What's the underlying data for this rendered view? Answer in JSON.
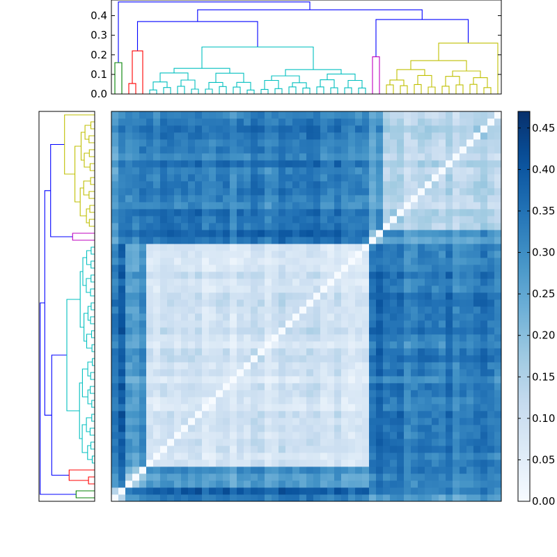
{
  "chart_data": [
    {
      "type": "dendrogram",
      "orientation": "top",
      "y_ticks": [
        "0.0",
        "0.1",
        "0.2",
        "0.3",
        "0.4"
      ],
      "ylim": [
        0,
        0.48
      ],
      "leaf_count": 56,
      "clusters": [
        {
          "color": "#008000",
          "leaves": [
            0,
            1
          ],
          "merge_height": 0.16
        },
        {
          "color": "#ff0000",
          "leaves": [
            2,
            3,
            4
          ],
          "merge_height": 0.22
        },
        {
          "color": "#00bfbf",
          "leaves": [
            5,
            6,
            7,
            8,
            9,
            10,
            11,
            12,
            13,
            14,
            15,
            16,
            17,
            18,
            19,
            20,
            21,
            22,
            23,
            24,
            25,
            26,
            27,
            28,
            29,
            30,
            31,
            32,
            33,
            34,
            35,
            36
          ],
          "merge_height": 0.24
        },
        {
          "color": "#bf00bf",
          "leaves": [
            37,
            38
          ],
          "merge_height": 0.19
        },
        {
          "color": "#bfbf00",
          "leaves": [
            39,
            40,
            41,
            42,
            43,
            44,
            45,
            46,
            47,
            48,
            49,
            50,
            51,
            52,
            53,
            54,
            55
          ],
          "merge_height": 0.26
        }
      ],
      "links": [
        {
          "color": "#0000ff",
          "left": "green",
          "right": "red+cyan",
          "height": 0.47
        },
        {
          "color": "#0000ff",
          "left": "red",
          "right": "cyan",
          "height": 0.37
        },
        {
          "color": "#0000ff",
          "left": "magenta",
          "right": "yellow",
          "height": 0.38
        },
        {
          "color": "#0000ff",
          "left": "red+cyan",
          "right": "magenta+yellow",
          "height": 0.43
        }
      ]
    },
    {
      "type": "dendrogram",
      "orientation": "left",
      "leaf_count": 56,
      "note_order": "same leaf order as top dendrogram, leaf 0 at bottom"
    },
    {
      "type": "heatmap",
      "rows": 56,
      "cols": 56,
      "colormap": "Blues",
      "vmin": 0.0,
      "vmax": 0.47,
      "diagonal": 0.0,
      "block_order": [
        "green",
        "red",
        "cyan",
        "magenta",
        "yellow"
      ],
      "block_sizes": [
        2,
        3,
        32,
        2,
        17
      ],
      "within_block_mean": [
        0.15,
        0.2,
        0.08,
        0.17,
        0.14
      ],
      "between_block_mean": [
        [
          0.15,
          0.33,
          0.36,
          0.28,
          0.3
        ],
        [
          0.33,
          0.2,
          0.28,
          0.34,
          0.33
        ],
        [
          0.36,
          0.28,
          0.08,
          0.35,
          0.33
        ],
        [
          0.28,
          0.34,
          0.35,
          0.17,
          0.27
        ],
        [
          0.3,
          0.33,
          0.33,
          0.27,
          0.14
        ]
      ]
    },
    {
      "type": "colorbar",
      "ticks": [
        "0.00",
        "0.05",
        "0.10",
        "0.15",
        "0.20",
        "0.25",
        "0.30",
        "0.35",
        "0.40",
        "0.45"
      ],
      "range": [
        0,
        0.47
      ]
    }
  ]
}
